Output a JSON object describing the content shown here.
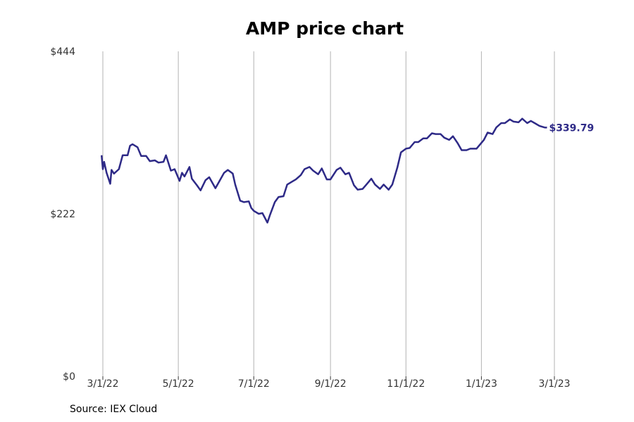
{
  "chart_data": {
    "type": "line",
    "title": "AMP price chart",
    "xlabel": "",
    "ylabel": "",
    "y_ticks": [
      0,
      222,
      444
    ],
    "y_tick_labels": [
      "$0",
      "$222",
      "$444"
    ],
    "ylim": [
      0,
      444
    ],
    "x_ticks": [
      "2022-03-01",
      "2022-05-01",
      "2022-07-01",
      "2022-09-01",
      "2022-11-01",
      "2023-01-01",
      "2023-03-01"
    ],
    "x_tick_labels": [
      "3/1/22",
      "5/1/22",
      "7/1/22",
      "9/1/22",
      "11/1/22",
      "1/1/23",
      "3/1/23"
    ],
    "xlim": [
      "2022-03-01",
      "2023-03-01"
    ],
    "grid": "vertical",
    "line_color": "#2e2a87",
    "end_label": "$339.79",
    "series": [
      {
        "values": [
          [
            "2022-02-28",
            302
          ],
          [
            "2022-03-01",
            283
          ],
          [
            "2022-03-02",
            293
          ],
          [
            "2022-03-04",
            278
          ],
          [
            "2022-03-07",
            263
          ],
          [
            "2022-03-08",
            282
          ],
          [
            "2022-03-10",
            277
          ],
          [
            "2022-03-14",
            283
          ],
          [
            "2022-03-17",
            302
          ],
          [
            "2022-03-21",
            302
          ],
          [
            "2022-03-23",
            315
          ],
          [
            "2022-03-25",
            317
          ],
          [
            "2022-03-29",
            313
          ],
          [
            "2022-04-01",
            301
          ],
          [
            "2022-04-05",
            301
          ],
          [
            "2022-04-08",
            294
          ],
          [
            "2022-04-12",
            295
          ],
          [
            "2022-04-15",
            292
          ],
          [
            "2022-04-19",
            293
          ],
          [
            "2022-04-21",
            302
          ],
          [
            "2022-04-25",
            281
          ],
          [
            "2022-04-28",
            283
          ],
          [
            "2022-05-02",
            267
          ],
          [
            "2022-05-04",
            278
          ],
          [
            "2022-05-06",
            273
          ],
          [
            "2022-05-10",
            286
          ],
          [
            "2022-05-12",
            270
          ],
          [
            "2022-05-16",
            261
          ],
          [
            "2022-05-19",
            254
          ],
          [
            "2022-05-23",
            268
          ],
          [
            "2022-05-26",
            272
          ],
          [
            "2022-05-31",
            257
          ],
          [
            "2022-06-03",
            266
          ],
          [
            "2022-06-07",
            278
          ],
          [
            "2022-06-10",
            282
          ],
          [
            "2022-06-14",
            277
          ],
          [
            "2022-06-16",
            262
          ],
          [
            "2022-06-20",
            240
          ],
          [
            "2022-06-23",
            238
          ],
          [
            "2022-06-27",
            239
          ],
          [
            "2022-06-29",
            230
          ],
          [
            "2022-07-01",
            226
          ],
          [
            "2022-07-05",
            222
          ],
          [
            "2022-07-08",
            223
          ],
          [
            "2022-07-12",
            210
          ],
          [
            "2022-07-14",
            220
          ],
          [
            "2022-07-18",
            238
          ],
          [
            "2022-07-21",
            245
          ],
          [
            "2022-07-25",
            246
          ],
          [
            "2022-07-28",
            262
          ],
          [
            "2022-08-01",
            266
          ],
          [
            "2022-08-04",
            269
          ],
          [
            "2022-08-08",
            275
          ],
          [
            "2022-08-11",
            283
          ],
          [
            "2022-08-15",
            286
          ],
          [
            "2022-08-18",
            281
          ],
          [
            "2022-08-22",
            276
          ],
          [
            "2022-08-25",
            284
          ],
          [
            "2022-08-29",
            269
          ],
          [
            "2022-09-01",
            269
          ],
          [
            "2022-09-06",
            282
          ],
          [
            "2022-09-09",
            285
          ],
          [
            "2022-09-13",
            276
          ],
          [
            "2022-09-16",
            278
          ],
          [
            "2022-09-20",
            261
          ],
          [
            "2022-09-23",
            255
          ],
          [
            "2022-09-27",
            256
          ],
          [
            "2022-09-30",
            262
          ],
          [
            "2022-10-04",
            270
          ],
          [
            "2022-10-07",
            262
          ],
          [
            "2022-10-11",
            256
          ],
          [
            "2022-10-14",
            262
          ],
          [
            "2022-10-18",
            255
          ],
          [
            "2022-10-21",
            262
          ],
          [
            "2022-10-25",
            285
          ],
          [
            "2022-10-28",
            306
          ],
          [
            "2022-11-01",
            311
          ],
          [
            "2022-11-04",
            312
          ],
          [
            "2022-11-08",
            320
          ],
          [
            "2022-11-11",
            320
          ],
          [
            "2022-11-15",
            325
          ],
          [
            "2022-11-18",
            325
          ],
          [
            "2022-11-22",
            332
          ],
          [
            "2022-11-25",
            331
          ],
          [
            "2022-11-29",
            331
          ],
          [
            "2022-12-02",
            326
          ],
          [
            "2022-12-06",
            323
          ],
          [
            "2022-12-09",
            328
          ],
          [
            "2022-12-13",
            318
          ],
          [
            "2022-12-16",
            309
          ],
          [
            "2022-12-20",
            309
          ],
          [
            "2022-12-23",
            311
          ],
          [
            "2022-12-28",
            311
          ],
          [
            "2023-01-03",
            323
          ],
          [
            "2023-01-06",
            333
          ],
          [
            "2023-01-10",
            331
          ],
          [
            "2023-01-13",
            340
          ],
          [
            "2023-01-17",
            346
          ],
          [
            "2023-01-20",
            346
          ],
          [
            "2023-01-24",
            351
          ],
          [
            "2023-01-27",
            348
          ],
          [
            "2023-01-31",
            347
          ],
          [
            "2023-02-03",
            352
          ],
          [
            "2023-02-07",
            346
          ],
          [
            "2023-02-10",
            349
          ],
          [
            "2023-02-14",
            345
          ],
          [
            "2023-02-17",
            342
          ],
          [
            "2023-02-21",
            340
          ],
          [
            "2023-02-23",
            339.79
          ]
        ]
      }
    ]
  },
  "source_note": "Source: IEX Cloud"
}
